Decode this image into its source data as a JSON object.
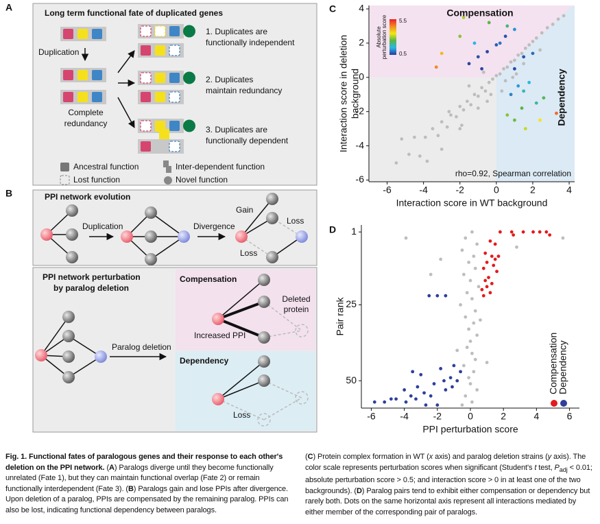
{
  "panel_a": {
    "label": "A",
    "title": "Long term functional fate of duplicated genes",
    "duplication": "Duplication",
    "redundancy": [
      "Complete",
      "redundancy"
    ],
    "fates": [
      [
        "1. Duplicates are",
        "functionally independent"
      ],
      [
        "2. Duplicates",
        "maintain redundancy"
      ],
      [
        "3. Duplicates are",
        "functionally dependent"
      ]
    ],
    "legend": [
      "Ancestral function",
      "Lost function",
      "Inter-dependent function",
      "Novel function"
    ]
  },
  "panel_b": {
    "label": "B",
    "evolution": {
      "title": "PPI network evolution",
      "duplication": "Duplication",
      "divergence": "Divergence",
      "gain": "Gain",
      "loss": [
        "Loss",
        "Loss"
      ]
    },
    "perturbation": {
      "title": [
        "PPI network perturbation",
        "by paralog deletion"
      ],
      "deletion": "Paralog deletion",
      "compensation": {
        "title": "Compensation",
        "deleted": [
          "Deleted",
          "protein"
        ],
        "increased": "Increased PPI"
      },
      "dependency": {
        "title": "Dependency",
        "loss": "Loss"
      }
    }
  },
  "chart_data": [
    {
      "type": "scatter",
      "label": "C",
      "xlabel": "Interaction score in WT background",
      "ylabel": [
        "Interaction score in deletion",
        "background"
      ],
      "annotations": {
        "compensation": "Compensation",
        "dependency": "Dependency",
        "rho": "rho=0.92, Spearman correlation"
      },
      "xlim": [
        -7,
        4.3
      ],
      "ylim": [
        -6.1,
        4.2
      ],
      "xticks": [
        -6,
        -4,
        -2,
        0,
        2,
        4
      ],
      "yticks": [
        -6,
        -4,
        -2,
        0,
        2,
        4
      ],
      "colorbar": {
        "label": [
          "Absolute",
          "perturbation score"
        ],
        "ticks": [
          0.5,
          5.5
        ],
        "colors": [
          "#2b3a9c",
          "#29b6e6",
          "#5ab645",
          "#f2e619",
          "#f08a24",
          "#e8202a"
        ]
      },
      "series": [
        {
          "color": "#bdbdbd",
          "x": [
            -5.5,
            -4.8,
            -4.2,
            -3.9,
            -3.5,
            -3.2,
            -3.0,
            -2.7,
            -2.5,
            -2.2,
            -2.0,
            -1.8,
            -1.6,
            -1.4,
            -1.2,
            -1.0,
            -0.8,
            -0.6,
            -0.4,
            -0.2,
            0.0,
            0.2,
            0.4,
            0.6,
            0.8,
            1.0,
            1.2,
            1.4,
            1.6,
            1.8,
            2.0,
            2.2,
            2.5,
            2.8,
            3.1,
            3.4,
            3.7,
            -4.5,
            -3.0,
            -2.0,
            -1.0,
            -0.5,
            0.5,
            1.5,
            -3.8,
            -2.6,
            -1.5,
            -0.7,
            0.3,
            1.1,
            2.4,
            -5.2,
            -1.9,
            -0.3,
            0.9
          ],
          "values": [
            -5.0,
            -4.5,
            -4.6,
            -3.5,
            -3.0,
            -3.4,
            -2.6,
            -2.9,
            -2.2,
            -2.3,
            -1.7,
            -1.9,
            -1.4,
            -1.6,
            -1.0,
            -1.1,
            -0.6,
            -0.8,
            -0.3,
            -0.1,
            0.1,
            0.2,
            0.5,
            0.6,
            0.9,
            1.0,
            1.3,
            1.4,
            1.7,
            1.9,
            2.1,
            2.3,
            2.6,
            2.9,
            3.1,
            3.4,
            3.6,
            -3.5,
            -4.2,
            -3.0,
            -1.8,
            -1.4,
            -0.2,
            0.8,
            -4.9,
            -2.0,
            -0.5,
            0.3,
            -0.8,
            0.2,
            1.6,
            -3.6,
            -2.8,
            -1.0,
            0.0
          ]
        },
        {
          "x": [
            -1.5,
            -1.0,
            -0.5,
            0.0,
            0.5,
            1.0,
            -0.8,
            0.2,
            -2.0,
            -3.0,
            -1.8,
            -0.4,
            0.6,
            -1.2,
            -3.3,
            1.0,
            1.5,
            2.0,
            1.2,
            1.8,
            0.8,
            1.4,
            2.2,
            1.0,
            1.6,
            0.6,
            2.6,
            3.3,
            1.5,
            2.4
          ],
          "values": [
            0.8,
            1.2,
            1.5,
            1.9,
            2.4,
            2.8,
            0.5,
            2.0,
            2.4,
            1.4,
            3.5,
            3.2,
            3.0,
            2.0,
            0.6,
            0.5,
            1.2,
            1.4,
            -0.5,
            -0.3,
            -1.0,
            -1.8,
            -1.5,
            -2.5,
            -3.0,
            -2.2,
            -1.2,
            -2.1,
            -0.8,
            -2.5
          ],
          "scores": [
            0.6,
            0.7,
            0.6,
            0.8,
            0.7,
            1.2,
            0.6,
            1.0,
            2.8,
            4.0,
            3.0,
            2.5,
            2.2,
            1.5,
            4.5,
            0.6,
            0.7,
            0.9,
            1.3,
            1.5,
            1.1,
            2.5,
            2.0,
            2.6,
            3.2,
            2.8,
            2.4,
            4.8,
            1.8,
            3.5
          ]
        }
      ]
    },
    {
      "type": "scatter",
      "label": "D",
      "xlabel": "PPI perturbation score",
      "ylabel": "Pair rank",
      "xlim": [
        -6.6,
        6.6
      ],
      "ylim": [
        59,
        -1.3
      ],
      "xticks": [
        -6,
        -4,
        -2,
        0,
        2,
        4,
        6
      ],
      "yticks": [
        1,
        25,
        50
      ],
      "series": [
        {
          "color": "#bdbdbd",
          "x": [
            0.1,
            -0.3,
            0.4,
            -0.5,
            0.2,
            -0.1,
            0.3,
            -0.4,
            0.0,
            0.5,
            -0.2,
            0.1,
            -0.6,
            0.3,
            -0.3,
            0.2,
            -0.1,
            0.4,
            0.0,
            -0.2,
            0.1,
            0.3,
            -0.4,
            0.2,
            -0.1,
            0.0,
            0.4,
            -0.3,
            0.1,
            -0.5,
            5.6,
            -3.9,
            2.8,
            -1.8,
            0.6,
            -0.8,
            -2.4,
            1.0
          ],
          "values": [
            1,
            3,
            5,
            7,
            9,
            11,
            13,
            15,
            17,
            19,
            21,
            23,
            25,
            27,
            29,
            31,
            33,
            35,
            37,
            39,
            41,
            43,
            45,
            47,
            49,
            51,
            53,
            55,
            57,
            58,
            3,
            3,
            6,
            10,
            30,
            40,
            15,
            44
          ]
        },
        {
          "name": "Compensation",
          "color": "#e41a1c",
          "x": [
            1.8,
            2.5,
            3.2,
            3.8,
            4.2,
            4.6,
            1.2,
            1.5,
            0.9,
            1.3,
            1.7,
            1.0,
            1.4,
            0.8,
            1.6,
            1.1,
            0.9,
            1.3,
            1.0,
            0.7,
            1.2,
            0.8,
            1.5,
            2.6,
            4.8
          ],
          "values": [
            1,
            1,
            1,
            1,
            1,
            1,
            4,
            5,
            8,
            9,
            9,
            11,
            12,
            13,
            14,
            16,
            17,
            18,
            19,
            20,
            21,
            22,
            10,
            2,
            2
          ]
        },
        {
          "name": "Dependency",
          "color": "#2e3f9c",
          "x": [
            -2.5,
            -2.0,
            -1.5,
            -3.5,
            -3.0,
            -1.0,
            -0.8,
            -1.2,
            -2.2,
            -3.2,
            -4.0,
            -1.8,
            -2.8,
            -3.6,
            -4.5,
            -5.2,
            -5.8,
            -1.5,
            -2.4,
            -3.3,
            -0.6,
            -1.1,
            -2.0,
            -2.7,
            -3.9,
            -4.8,
            -1.6
          ],
          "values": [
            22,
            22,
            22,
            47,
            48,
            45,
            50,
            49,
            51,
            52,
            53,
            46,
            54,
            55,
            56,
            57,
            57,
            53,
            55,
            56,
            47,
            52,
            58,
            58,
            57,
            56,
            50
          ]
        }
      ]
    }
  ],
  "caption": {
    "left": [
      "Fig. 1. Functional fates of paralogous genes and their response to each other's deletion on the PPI network.",
      " (",
      "A",
      ") Paralogs diverge until they become functionally unrelated (Fate 1), but they can maintain functional overlap (Fate 2) or remain functionally interdependent (Fate 3). (",
      "B",
      ") Paralogs gain and lose PPIs after divergence. Upon deletion of a paralog, PPIs are compensated by the remaining paralog. PPIs can also be lost, indicating functional dependency between paralogs."
    ],
    "right": [
      "(",
      "C",
      ") Protein complex formation in WT (",
      "x",
      " axis) and paralog deletion strains (",
      "y",
      " axis). The color scale represents perturbation scores when significant (Student's ",
      "t",
      " test, ",
      "P",
      "adj",
      " < 0.01; absolute perturbation score > 0.5; and interaction score > 0 in at least one of the two backgrounds). (",
      "D",
      ") Paralog pairs tend to exhibit either compensation or dependency but rarely both. Dots on the same horizontal axis represent all interactions mediated by either member of the corresponding pair of paralogs."
    ]
  }
}
